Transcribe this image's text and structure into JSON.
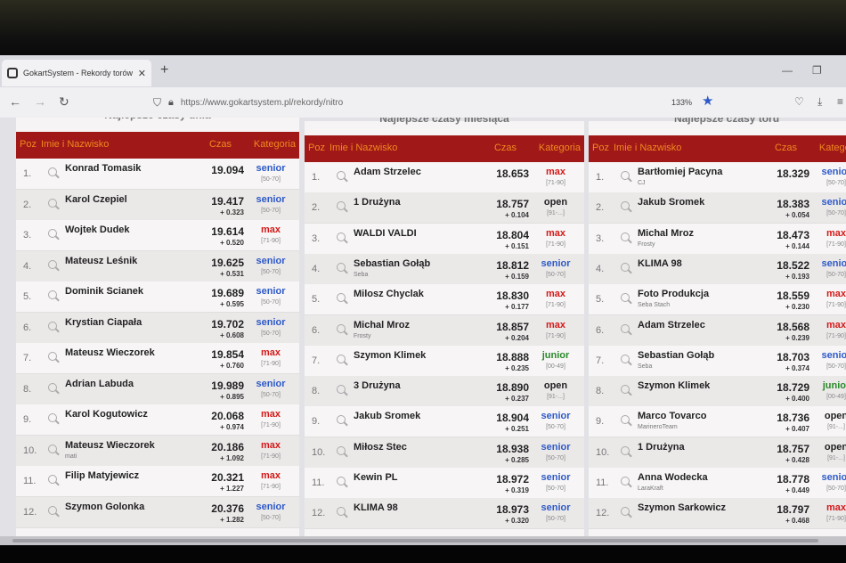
{
  "browser": {
    "tab_title": "GokartSystem - Rekordy torów",
    "tab_close": "✕",
    "new_tab": "+",
    "url": "https://www.gokartsystem.pl/rekordy/nitro",
    "zoom": "133%",
    "icons": [
      "back-icon",
      "forward-icon",
      "reload-icon",
      "shield-icon",
      "lock-icon",
      "star-icon",
      "pocket-icon",
      "download-icon",
      "menu-icon"
    ]
  },
  "colors": {
    "header_bg": "#a01818",
    "header_text": "#f08a1e",
    "senior": "#2e5ac8",
    "max": "#d41a1a",
    "open": "#222222",
    "junior": "#2a8a2a"
  },
  "columns": {
    "pos": "Poz",
    "name": "Imie i Nazwisko",
    "time": "Czas",
    "category": "Kategoria"
  },
  "panels": [
    {
      "title": "Najlepsze czasy dnia",
      "rows": [
        {
          "pos": "1.",
          "name": "Konrad Tomasik",
          "sub": "",
          "time": "19.094",
          "diff": "",
          "cat": "senior",
          "range": "[50-70]"
        },
        {
          "pos": "2.",
          "name": "Karol Czepiel",
          "sub": "",
          "time": "19.417",
          "diff": "+ 0.323",
          "cat": "senior",
          "range": "[50-70]"
        },
        {
          "pos": "3.",
          "name": "Wojtek Dudek",
          "sub": "",
          "time": "19.614",
          "diff": "+ 0.520",
          "cat": "max",
          "range": "[71-90]"
        },
        {
          "pos": "4.",
          "name": "Mateusz Leśnik",
          "sub": "",
          "time": "19.625",
          "diff": "+ 0.531",
          "cat": "senior",
          "range": "[50-70]"
        },
        {
          "pos": "5.",
          "name": "Dominik Scianek",
          "sub": "",
          "time": "19.689",
          "diff": "+ 0.595",
          "cat": "senior",
          "range": "[50-70]"
        },
        {
          "pos": "6.",
          "name": "Krystian Ciapała",
          "sub": "",
          "time": "19.702",
          "diff": "+ 0.608",
          "cat": "senior",
          "range": "[50-70]"
        },
        {
          "pos": "7.",
          "name": "Mateusz Wieczorek",
          "sub": "",
          "time": "19.854",
          "diff": "+ 0.760",
          "cat": "max",
          "range": "[71-90]"
        },
        {
          "pos": "8.",
          "name": "Adrian Labuda",
          "sub": "",
          "time": "19.989",
          "diff": "+ 0.895",
          "cat": "senior",
          "range": "[50-70]"
        },
        {
          "pos": "9.",
          "name": "Karol Kogutowicz",
          "sub": "",
          "time": "20.068",
          "diff": "+ 0.974",
          "cat": "max",
          "range": "[71-90]"
        },
        {
          "pos": "10.",
          "name": "Mateusz Wieczorek",
          "sub": "mati",
          "time": "20.186",
          "diff": "+ 1.092",
          "cat": "max",
          "range": "[71-90]"
        },
        {
          "pos": "11.",
          "name": "Filip Matyjewicz",
          "sub": "",
          "time": "20.321",
          "diff": "+ 1.227",
          "cat": "max",
          "range": "[71-90]"
        },
        {
          "pos": "12.",
          "name": "Szymon Golonka",
          "sub": "",
          "time": "20.376",
          "diff": "+ 1.282",
          "cat": "senior",
          "range": "[50-70]"
        }
      ]
    },
    {
      "title": "Najlepsze czasy miesiąca",
      "rows": [
        {
          "pos": "1.",
          "name": "Adam Strzelec",
          "sub": "",
          "time": "18.653",
          "diff": "",
          "cat": "max",
          "range": "[71-90]"
        },
        {
          "pos": "2.",
          "name": "1 Drużyna",
          "sub": "",
          "time": "18.757",
          "diff": "+ 0.104",
          "cat": "open",
          "range": "[91-...]"
        },
        {
          "pos": "3.",
          "name": "WALDI VALDI",
          "sub": "",
          "time": "18.804",
          "diff": "+ 0.151",
          "cat": "max",
          "range": "[71-90]"
        },
        {
          "pos": "4.",
          "name": "Sebastian Gołąb",
          "sub": "Seba",
          "time": "18.812",
          "diff": "+ 0.159",
          "cat": "senior",
          "range": "[50-70]"
        },
        {
          "pos": "5.",
          "name": "Milosz Chyclak",
          "sub": "",
          "time": "18.830",
          "diff": "+ 0.177",
          "cat": "max",
          "range": "[71-90]"
        },
        {
          "pos": "6.",
          "name": "Michal Mroz",
          "sub": "Frosty",
          "time": "18.857",
          "diff": "+ 0.204",
          "cat": "max",
          "range": "[71-90]"
        },
        {
          "pos": "7.",
          "name": "Szymon Klimek",
          "sub": "",
          "time": "18.888",
          "diff": "+ 0.235",
          "cat": "junior",
          "range": "[00-49]"
        },
        {
          "pos": "8.",
          "name": "3 Drużyna",
          "sub": "",
          "time": "18.890",
          "diff": "+ 0.237",
          "cat": "open",
          "range": "[91-...]"
        },
        {
          "pos": "9.",
          "name": "Jakub Sromek",
          "sub": "",
          "time": "18.904",
          "diff": "+ 0.251",
          "cat": "senior",
          "range": "[50-70]"
        },
        {
          "pos": "10.",
          "name": "Miłosz Stec",
          "sub": "",
          "time": "18.938",
          "diff": "+ 0.285",
          "cat": "senior",
          "range": "[50-70]"
        },
        {
          "pos": "11.",
          "name": "Kewin PL",
          "sub": "",
          "time": "18.972",
          "diff": "+ 0.319",
          "cat": "senior",
          "range": "[50-70]"
        },
        {
          "pos": "12.",
          "name": "KLIMA 98",
          "sub": "",
          "time": "18.973",
          "diff": "+ 0.320",
          "cat": "senior",
          "range": "[50-70]"
        }
      ]
    },
    {
      "title": "Najlepsze czasy toru",
      "rows": [
        {
          "pos": "1.",
          "name": "Bartłomiej Pacyna",
          "sub": "CJ",
          "time": "18.329",
          "diff": "",
          "cat": "senior",
          "range": "[50-70]"
        },
        {
          "pos": "2.",
          "name": "Jakub Sromek",
          "sub": "",
          "time": "18.383",
          "diff": "+ 0.054",
          "cat": "senior",
          "range": "[50-70]"
        },
        {
          "pos": "3.",
          "name": "Michal Mroz",
          "sub": "Frosty",
          "time": "18.473",
          "diff": "+ 0.144",
          "cat": "max",
          "range": "[71-90]"
        },
        {
          "pos": "4.",
          "name": "KLIMA 98",
          "sub": "",
          "time": "18.522",
          "diff": "+ 0.193",
          "cat": "senior",
          "range": "[50-70]"
        },
        {
          "pos": "5.",
          "name": "Foto Produkcja",
          "sub": "Seba Stach",
          "time": "18.559",
          "diff": "+ 0.230",
          "cat": "max",
          "range": "[71-90]"
        },
        {
          "pos": "6.",
          "name": "Adam Strzelec",
          "sub": "",
          "time": "18.568",
          "diff": "+ 0.239",
          "cat": "max",
          "range": "[71-90]"
        },
        {
          "pos": "7.",
          "name": "Sebastian Gołąb",
          "sub": "Seba",
          "time": "18.703",
          "diff": "+ 0.374",
          "cat": "senior",
          "range": "[50-70]"
        },
        {
          "pos": "8.",
          "name": "Szymon Klimek",
          "sub": "",
          "time": "18.729",
          "diff": "+ 0.400",
          "cat": "junior",
          "range": "[00-49]"
        },
        {
          "pos": "9.",
          "name": "Marco Tovarco",
          "sub": "MarineroTeam",
          "time": "18.736",
          "diff": "+ 0.407",
          "cat": "open",
          "range": "[91-...]"
        },
        {
          "pos": "10.",
          "name": "1 Drużyna",
          "sub": "",
          "time": "18.757",
          "diff": "+ 0.428",
          "cat": "open",
          "range": "[91-...]"
        },
        {
          "pos": "11.",
          "name": "Anna Wodecka",
          "sub": "LaraKraft",
          "time": "18.778",
          "diff": "+ 0.449",
          "cat": "senior",
          "range": "[50-70]"
        },
        {
          "pos": "12.",
          "name": "Szymon Sarkowicz",
          "sub": "",
          "time": "18.797",
          "diff": "+ 0.468",
          "cat": "max",
          "range": "[71-90]"
        }
      ]
    }
  ]
}
